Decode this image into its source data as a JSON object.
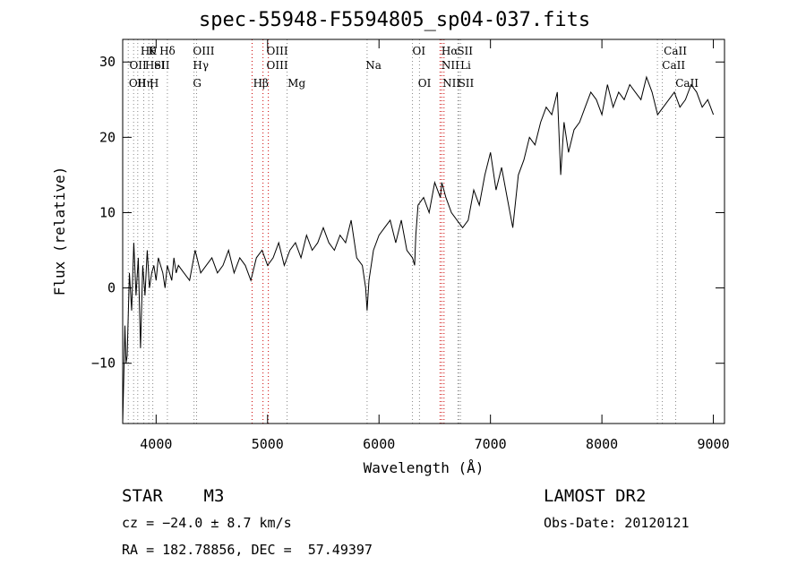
{
  "chart_data": {
    "type": "line",
    "title": "spec-55948-F5594805_sp04-037.fits",
    "xlabel": "Wavelength (Å)",
    "ylabel": "Flux (relative)",
    "xlim": [
      3700,
      9100
    ],
    "ylim": [
      -18,
      33
    ],
    "xticks": [
      "4000",
      "5000",
      "6000",
      "7000",
      "8000",
      "9000"
    ],
    "yticks": [
      "30",
      "20",
      "10",
      "0",
      "−10"
    ],
    "x_tick_values": [
      4000,
      5000,
      6000,
      7000,
      8000,
      9000
    ],
    "y_tick_values": [
      30,
      20,
      10,
      0,
      -10
    ],
    "series": [
      {
        "x": [
          3700,
          3710,
          3720,
          3730,
          3740,
          3760,
          3780,
          3800,
          3820,
          3840,
          3860,
          3880,
          3900,
          3920,
          3940,
          3960,
          3980,
          4000,
          4020,
          4040,
          4060,
          4080,
          4100,
          4120,
          4140,
          4160,
          4180,
          4200,
          4250,
          4300,
          4350,
          4400,
          4450,
          4500,
          4550,
          4600,
          4650,
          4700,
          4750,
          4800,
          4850,
          4900,
          4950,
          5000,
          5050,
          5100,
          5150,
          5200,
          5250,
          5300,
          5350,
          5400,
          5450,
          5500,
          5550,
          5600,
          5650,
          5700,
          5750,
          5800,
          5850,
          5880,
          5893,
          5910,
          5950,
          6000,
          6050,
          6100,
          6150,
          6200,
          6250,
          6300,
          6320,
          6330,
          6350,
          6400,
          6450,
          6500,
          6550,
          6563,
          6600,
          6650,
          6700,
          6750,
          6800,
          6850,
          6900,
          6950,
          7000,
          7050,
          7100,
          7150,
          7200,
          7250,
          7300,
          7350,
          7400,
          7450,
          7500,
          7550,
          7600,
          7630,
          7660,
          7700,
          7750,
          7800,
          7850,
          7900,
          7950,
          8000,
          8050,
          8100,
          8150,
          8200,
          8250,
          8300,
          8350,
          8400,
          8450,
          8500,
          8550,
          8600,
          8650,
          8700,
          8750,
          8800,
          8850,
          8900,
          8950,
          9000
        ],
        "y": [
          -18,
          -12,
          -5,
          -10,
          -9,
          2,
          -3,
          6,
          -1,
          4,
          -8,
          3,
          -1,
          5,
          0,
          2,
          3,
          1,
          4,
          3,
          2,
          0,
          3,
          2,
          1,
          4,
          2,
          3,
          2,
          1,
          5,
          2,
          3,
          4,
          2,
          3,
          5,
          2,
          4,
          3,
          1,
          4,
          5,
          3,
          4,
          6,
          3,
          5,
          6,
          4,
          7,
          5,
          6,
          8,
          6,
          5,
          7,
          6,
          9,
          4,
          3,
          0,
          -3,
          1,
          5,
          7,
          8,
          9,
          6,
          9,
          5,
          4,
          3,
          7,
          11,
          12,
          10,
          14,
          12,
          14,
          12,
          10,
          9,
          8,
          9,
          13,
          11,
          15,
          18,
          13,
          16,
          12,
          8,
          15,
          17,
          20,
          19,
          22,
          24,
          23,
          26,
          15,
          22,
          18,
          21,
          22,
          24,
          26,
          25,
          23,
          27,
          24,
          26,
          25,
          27,
          26,
          25,
          28,
          26,
          23,
          24,
          25,
          26,
          24,
          25,
          27,
          26,
          24,
          25,
          23
        ]
      }
    ],
    "lines_top": [
      "Hθ",
      "K",
      "Hδ",
      "OIII",
      "OIII",
      "OI",
      "Hα",
      "SII",
      "CaII"
    ],
    "lines_mid": [
      "OII",
      "HeI",
      "SII",
      "Hγ",
      "OIII",
      "Na",
      "NII",
      "Li",
      "CaII"
    ],
    "lines_bot": [
      "OII",
      "Hη",
      "H",
      "G",
      "Hβ",
      "Mg",
      "OI",
      "NII",
      "SII",
      "CaII"
    ]
  },
  "info": {
    "object": "STAR    M3",
    "cz": "cz = −24.0 ± 8.7 km/s",
    "radec": "RA = 182.78856, DEC =  57.49397",
    "survey": "LAMOST DR2",
    "obsdate": "Obs-Date: 20120121"
  }
}
